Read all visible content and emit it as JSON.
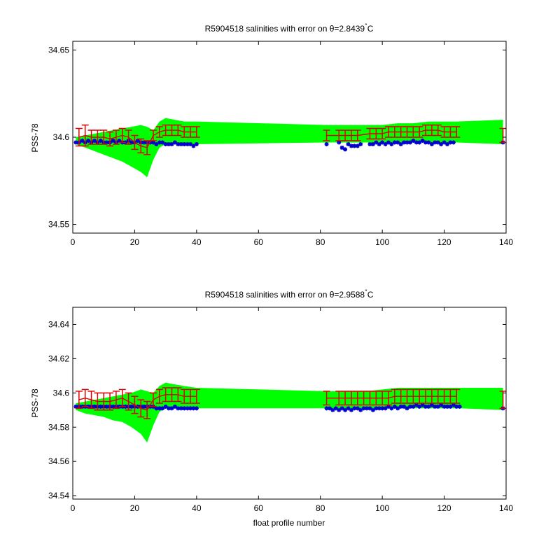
{
  "chart_data": [
    {
      "type": "scatter",
      "title_prefix": "R5904518 salinities with error on ",
      "title_theta": "θ=2.8439",
      "title_deg": "°",
      "title_unit": "C",
      "xlabel": "",
      "ylabel": "PSS-78",
      "xlim": [
        0,
        140
      ],
      "ylim": [
        34.545,
        34.655
      ],
      "xticks": [
        0,
        20,
        40,
        60,
        80,
        100,
        120,
        140
      ],
      "yticks": [
        34.55,
        34.6,
        34.65
      ],
      "ytick_labels": [
        "34.55",
        "34.6",
        "34.65"
      ],
      "colors": {
        "envelope": "#00ff00",
        "calibrated": "#dd0000",
        "raw": "#0000cc"
      },
      "envelope": {
        "x": [
          1,
          4,
          7,
          10,
          13,
          16,
          19,
          22,
          24,
          26,
          28,
          30,
          33,
          36,
          40,
          82,
          86,
          90,
          95,
          100,
          105,
          110,
          115,
          120,
          124,
          139
        ],
        "upper": [
          34.6,
          34.601,
          34.602,
          34.603,
          34.604,
          34.605,
          34.606,
          34.607,
          34.606,
          34.604,
          34.609,
          34.611,
          34.61,
          34.609,
          34.609,
          34.607,
          34.607,
          34.607,
          34.607,
          34.607,
          34.608,
          34.608,
          34.609,
          34.609,
          34.609,
          34.61
        ],
        "lower": [
          34.596,
          34.594,
          34.592,
          34.59,
          34.588,
          34.586,
          34.583,
          34.58,
          34.577,
          34.587,
          34.594,
          34.596,
          34.596,
          34.596,
          34.596,
          34.597,
          34.597,
          34.597,
          34.597,
          34.597,
          34.597,
          34.597,
          34.597,
          34.597,
          34.597,
          34.596
        ]
      },
      "calibrated": {
        "x": [
          2,
          4,
          6,
          8,
          10,
          12,
          14,
          16,
          18,
          20,
          22,
          24,
          26,
          28,
          30,
          32,
          34,
          36,
          38,
          40,
          82,
          86,
          88,
          90,
          92,
          96,
          98,
          100,
          102,
          104,
          106,
          108,
          110,
          112,
          114,
          116,
          118,
          120,
          122,
          124,
          139
        ],
        "y": [
          34.6,
          34.601,
          34.6,
          34.6,
          34.6,
          34.599,
          34.6,
          34.601,
          34.6,
          34.597,
          34.595,
          34.594,
          34.601,
          34.603,
          34.604,
          34.604,
          34.604,
          34.603,
          34.603,
          34.603,
          34.601,
          34.601,
          34.601,
          34.601,
          34.601,
          34.602,
          34.602,
          34.602,
          34.603,
          34.603,
          34.603,
          34.603,
          34.603,
          34.603,
          34.604,
          34.604,
          34.604,
          34.603,
          34.603,
          34.603,
          34.601
        ],
        "err": [
          0.005,
          0.006,
          0.004,
          0.004,
          0.004,
          0.004,
          0.004,
          0.004,
          0.004,
          0.004,
          0.004,
          0.004,
          0.003,
          0.003,
          0.003,
          0.003,
          0.003,
          0.003,
          0.003,
          0.003,
          0.003,
          0.003,
          0.003,
          0.003,
          0.003,
          0.003,
          0.003,
          0.003,
          0.003,
          0.003,
          0.003,
          0.003,
          0.003,
          0.003,
          0.003,
          0.003,
          0.003,
          0.003,
          0.003,
          0.003,
          0.004
        ]
      },
      "raw": {
        "x": [
          1,
          2,
          3,
          4,
          5,
          6,
          7,
          8,
          9,
          10,
          11,
          12,
          13,
          14,
          15,
          16,
          17,
          18,
          19,
          20,
          21,
          22,
          23,
          24,
          25,
          26,
          27,
          28,
          29,
          30,
          31,
          32,
          33,
          34,
          35,
          36,
          37,
          38,
          39,
          40,
          82,
          86,
          87,
          88,
          89,
          90,
          91,
          92,
          93,
          96,
          97,
          98,
          99,
          100,
          101,
          102,
          103,
          104,
          105,
          106,
          107,
          108,
          109,
          110,
          111,
          112,
          113,
          114,
          115,
          116,
          117,
          118,
          119,
          120,
          121,
          122,
          123,
          139
        ],
        "y": [
          34.597,
          34.597,
          34.598,
          34.597,
          34.598,
          34.597,
          34.598,
          34.597,
          34.598,
          34.597,
          34.597,
          34.597,
          34.598,
          34.597,
          34.598,
          34.597,
          34.597,
          34.598,
          34.597,
          34.597,
          34.598,
          34.597,
          34.597,
          34.597,
          34.597,
          34.597,
          34.596,
          34.597,
          34.597,
          34.596,
          34.596,
          34.596,
          34.597,
          34.596,
          34.596,
          34.596,
          34.596,
          34.596,
          34.595,
          34.596,
          34.596,
          34.597,
          34.594,
          34.593,
          34.596,
          34.595,
          34.595,
          34.595,
          34.596,
          34.596,
          34.596,
          34.597,
          34.596,
          34.597,
          34.596,
          34.597,
          34.596,
          34.597,
          34.597,
          34.596,
          34.597,
          34.597,
          34.597,
          34.598,
          34.597,
          34.597,
          34.598,
          34.597,
          34.597,
          34.596,
          34.597,
          34.597,
          34.596,
          34.597,
          34.596,
          34.597,
          34.597,
          34.597
        ]
      }
    },
    {
      "type": "scatter",
      "title_prefix": "R5904518 salinities with error on ",
      "title_theta": "θ=2.9588",
      "title_deg": "°",
      "title_unit": "C",
      "xlabel": "float profile number",
      "ylabel": "PSS-78",
      "xlim": [
        0,
        140
      ],
      "ylim": [
        34.538,
        34.65
      ],
      "xticks": [
        0,
        20,
        40,
        60,
        80,
        100,
        120,
        140
      ],
      "yticks": [
        34.54,
        34.56,
        34.58,
        34.6,
        34.62,
        34.64
      ],
      "ytick_labels": [
        "34.54",
        "34.56",
        "34.58",
        "34.6",
        "34.62",
        "34.64"
      ],
      "colors": {
        "envelope": "#00ff00",
        "calibrated": "#dd0000",
        "raw": "#0000cc"
      },
      "envelope": {
        "x": [
          1,
          4,
          7,
          10,
          13,
          16,
          19,
          22,
          24,
          26,
          28,
          30,
          33,
          36,
          40,
          82,
          86,
          90,
          95,
          100,
          105,
          110,
          115,
          120,
          125,
          139
        ],
        "upper": [
          34.594,
          34.595,
          34.596,
          34.597,
          34.598,
          34.599,
          34.6,
          34.602,
          34.601,
          34.6,
          34.604,
          34.606,
          34.605,
          34.604,
          34.603,
          34.601,
          34.601,
          34.601,
          34.601,
          34.602,
          34.603,
          34.603,
          34.603,
          34.603,
          34.603,
          34.603
        ],
        "lower": [
          34.59,
          34.588,
          34.587,
          34.586,
          34.584,
          34.583,
          34.58,
          34.576,
          34.571,
          34.581,
          34.589,
          34.591,
          34.591,
          34.591,
          34.591,
          34.591,
          34.591,
          34.591,
          34.591,
          34.591,
          34.591,
          34.591,
          34.591,
          34.591,
          34.591,
          34.59
        ]
      },
      "calibrated": {
        "x": [
          2,
          4,
          6,
          8,
          10,
          12,
          14,
          16,
          18,
          20,
          22,
          24,
          26,
          28,
          30,
          32,
          34,
          36,
          38,
          40,
          82,
          86,
          88,
          90,
          92,
          94,
          96,
          98,
          100,
          102,
          104,
          106,
          108,
          110,
          112,
          114,
          116,
          118,
          120,
          122,
          124,
          139
        ],
        "y": [
          34.596,
          34.597,
          34.596,
          34.595,
          34.595,
          34.595,
          34.596,
          34.597,
          34.595,
          34.593,
          34.591,
          34.59,
          34.596,
          34.598,
          34.599,
          34.599,
          34.599,
          34.598,
          34.598,
          34.598,
          34.597,
          34.597,
          34.597,
          34.597,
          34.597,
          34.597,
          34.597,
          34.597,
          34.597,
          34.597,
          34.598,
          34.598,
          34.598,
          34.598,
          34.598,
          34.598,
          34.598,
          34.598,
          34.598,
          34.598,
          34.598,
          34.596
        ],
        "err": [
          0.005,
          0.005,
          0.005,
          0.005,
          0.005,
          0.005,
          0.005,
          0.005,
          0.005,
          0.005,
          0.005,
          0.005,
          0.004,
          0.004,
          0.004,
          0.004,
          0.004,
          0.004,
          0.004,
          0.004,
          0.004,
          0.004,
          0.004,
          0.004,
          0.004,
          0.004,
          0.004,
          0.004,
          0.004,
          0.004,
          0.004,
          0.004,
          0.004,
          0.004,
          0.004,
          0.004,
          0.004,
          0.004,
          0.004,
          0.004,
          0.004,
          0.005
        ]
      },
      "raw": {
        "x": [
          1,
          2,
          3,
          4,
          5,
          6,
          7,
          8,
          9,
          10,
          11,
          12,
          13,
          14,
          15,
          16,
          17,
          18,
          19,
          20,
          21,
          22,
          23,
          24,
          25,
          26,
          27,
          28,
          29,
          30,
          31,
          32,
          33,
          34,
          35,
          36,
          37,
          38,
          39,
          40,
          82,
          83,
          84,
          85,
          86,
          87,
          88,
          89,
          90,
          91,
          92,
          93,
          94,
          95,
          96,
          97,
          98,
          99,
          100,
          101,
          102,
          103,
          104,
          105,
          106,
          107,
          108,
          109,
          110,
          111,
          112,
          113,
          114,
          115,
          116,
          117,
          118,
          119,
          120,
          121,
          122,
          123,
          124,
          125,
          139
        ],
        "y": [
          34.592,
          34.592,
          34.592,
          34.592,
          34.592,
          34.592,
          34.592,
          34.592,
          34.592,
          34.592,
          34.592,
          34.592,
          34.592,
          34.592,
          34.592,
          34.592,
          34.592,
          34.592,
          34.592,
          34.592,
          34.592,
          34.592,
          34.592,
          34.592,
          34.592,
          34.592,
          34.591,
          34.591,
          34.591,
          34.592,
          34.591,
          34.591,
          34.592,
          34.591,
          34.591,
          34.591,
          34.591,
          34.591,
          34.591,
          34.591,
          34.591,
          34.591,
          34.59,
          34.591,
          34.59,
          34.591,
          34.59,
          34.591,
          34.59,
          34.591,
          34.591,
          34.59,
          34.591,
          34.591,
          34.591,
          34.59,
          34.591,
          34.591,
          34.591,
          34.591,
          34.592,
          34.591,
          34.592,
          34.591,
          34.592,
          34.592,
          34.591,
          34.592,
          34.592,
          34.593,
          34.592,
          34.593,
          34.592,
          34.592,
          34.593,
          34.592,
          34.592,
          34.593,
          34.592,
          34.592,
          34.592,
          34.593,
          34.592,
          34.592,
          34.591
        ]
      }
    }
  ]
}
